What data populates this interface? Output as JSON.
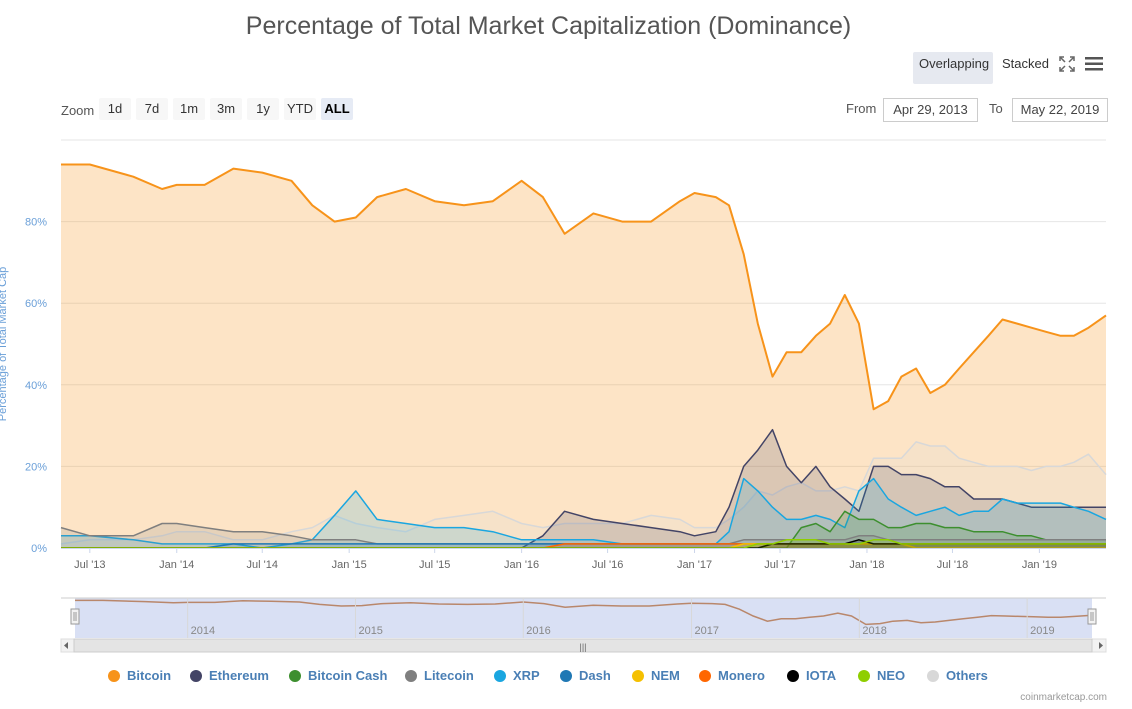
{
  "title": "Percentage of Total Market Capitalization (Dominance)",
  "toolbar": {
    "overlapping": "Overlapping",
    "stacked": "Stacked"
  },
  "zoom": {
    "label": "Zoom",
    "buttons": [
      "1d",
      "7d",
      "1m",
      "3m",
      "1y",
      "YTD",
      "ALL"
    ],
    "selected": "ALL"
  },
  "range": {
    "from_label": "From",
    "from": "Apr 29, 2013",
    "to_label": "To",
    "to": "May 22, 2019"
  },
  "credit": "coinmarketcap.com",
  "navigator": {
    "labels": [
      "2014",
      "2015",
      "2016",
      "2017",
      "2018",
      "2019"
    ],
    "scrollbar_grip": "|||"
  },
  "colors": {
    "Bitcoin": "#f7931a",
    "Ethereum": "#434466",
    "Bitcoin Cash": "#3d8f2f",
    "Litecoin": "#7f7f7f",
    "XRP": "#1aa6e0",
    "Dash": "#1f78b4",
    "NEM": "#f5c000",
    "Monero": "#ff6600",
    "IOTA": "#000000",
    "NEO": "#8fce00",
    "Others": "#d8d8d8"
  },
  "chart_data": {
    "type": "area",
    "title": "Percentage of Total Market Capitalization (Dominance)",
    "ylabel": "Percentage of Total Market Cap",
    "ylim": [
      0,
      100
    ],
    "yticks": [
      "0%",
      "20%",
      "40%",
      "60%",
      "80%"
    ],
    "xticks": [
      "Jul '13",
      "Jan '14",
      "Jul '14",
      "Jan '15",
      "Jul '15",
      "Jan '16",
      "Jul '16",
      "Jan '17",
      "Jul '17",
      "Jan '18",
      "Jul '18",
      "Jan '19"
    ],
    "x": [
      "2013-05-01",
      "2013-07-01",
      "2013-10-01",
      "2013-12-01",
      "2014-01-01",
      "2014-03-01",
      "2014-05-01",
      "2014-07-01",
      "2014-09-01",
      "2014-10-15",
      "2014-12-01",
      "2015-01-15",
      "2015-03-01",
      "2015-05-01",
      "2015-07-01",
      "2015-09-01",
      "2015-11-01",
      "2016-01-01",
      "2016-02-15",
      "2016-04-01",
      "2016-06-01",
      "2016-08-01",
      "2016-10-01",
      "2016-12-01",
      "2017-01-01",
      "2017-02-15",
      "2017-03-15",
      "2017-04-15",
      "2017-05-15",
      "2017-06-15",
      "2017-07-15",
      "2017-08-15",
      "2017-09-15",
      "2017-10-15",
      "2017-11-15",
      "2017-12-15",
      "2018-01-15",
      "2018-02-15",
      "2018-03-15",
      "2018-04-15",
      "2018-05-15",
      "2018-06-15",
      "2018-07-15",
      "2018-08-15",
      "2018-09-15",
      "2018-10-15",
      "2018-11-15",
      "2018-12-15",
      "2019-01-15",
      "2019-02-15",
      "2019-03-15",
      "2019-04-15",
      "2019-05-22"
    ],
    "series": [
      {
        "name": "Bitcoin",
        "values": [
          94,
          94,
          91,
          88,
          89,
          89,
          93,
          92,
          90,
          84,
          80,
          81,
          86,
          88,
          85,
          84,
          85,
          90,
          86,
          77,
          82,
          80,
          80,
          85,
          87,
          86,
          84,
          72,
          55,
          42,
          48,
          48,
          52,
          55,
          62,
          55,
          34,
          36,
          42,
          44,
          38,
          40,
          44,
          48,
          52,
          56,
          55,
          54,
          53,
          52,
          52,
          54,
          57
        ]
      },
      {
        "name": "Ethereum",
        "values": [
          0,
          0,
          0,
          0,
          0,
          0,
          0,
          0,
          0,
          0,
          0,
          0,
          0,
          0,
          0,
          0,
          0,
          0,
          3,
          9,
          7,
          6,
          5,
          4,
          3,
          4,
          10,
          20,
          24,
          29,
          20,
          16,
          20,
          15,
          12,
          9,
          20,
          20,
          18,
          18,
          17,
          15,
          15,
          12,
          12,
          12,
          11,
          10,
          10,
          10,
          10,
          10,
          10
        ]
      },
      {
        "name": "Bitcoin Cash",
        "values": [
          0,
          0,
          0,
          0,
          0,
          0,
          0,
          0,
          0,
          0,
          0,
          0,
          0,
          0,
          0,
          0,
          0,
          0,
          0,
          0,
          0,
          0,
          0,
          0,
          0,
          0,
          0,
          0,
          0,
          0,
          0,
          5,
          6,
          4,
          9,
          7,
          7,
          5,
          5,
          6,
          6,
          5,
          5,
          4,
          4,
          4,
          3,
          3,
          2,
          2,
          2,
          2,
          2
        ]
      },
      {
        "name": "Litecoin",
        "values": [
          5,
          3,
          3,
          6,
          6,
          5,
          4,
          4,
          3,
          2,
          2,
          2,
          1,
          1,
          1,
          1,
          1,
          1,
          1,
          1,
          1,
          1,
          1,
          1,
          1,
          1,
          1,
          2,
          2,
          2,
          2,
          2,
          2,
          2,
          2,
          3,
          3,
          2,
          2,
          2,
          2,
          2,
          2,
          2,
          2,
          2,
          2,
          2,
          2,
          2,
          2,
          2,
          2
        ]
      },
      {
        "name": "XRP",
        "values": [
          3,
          3,
          2,
          1,
          1,
          1,
          1,
          0,
          1,
          2,
          8,
          14,
          7,
          6,
          5,
          5,
          4,
          2,
          2,
          2,
          2,
          1,
          1,
          1,
          1,
          1,
          4,
          17,
          14,
          10,
          7,
          7,
          8,
          7,
          5,
          14,
          17,
          12,
          10,
          8,
          9,
          10,
          8,
          9,
          9,
          12,
          11,
          11,
          11,
          11,
          10,
          9,
          7
        ]
      },
      {
        "name": "Dash",
        "values": [
          0,
          0,
          0,
          0,
          0,
          0,
          1,
          1,
          1,
          1,
          1,
          1,
          1,
          1,
          1,
          1,
          1,
          1,
          1,
          1,
          1,
          1,
          1,
          1,
          1,
          1,
          1,
          1,
          1,
          1,
          1,
          1,
          1,
          1,
          1,
          1,
          1,
          1,
          1,
          1,
          1,
          1,
          1,
          1,
          1,
          1,
          1,
          1,
          1,
          1,
          1,
          1,
          1
        ]
      },
      {
        "name": "NEM",
        "values": [
          0,
          0,
          0,
          0,
          0,
          0,
          0,
          0,
          0,
          0,
          0,
          0,
          0,
          0,
          0,
          0,
          0,
          0,
          0,
          0,
          0,
          0,
          0,
          0,
          0,
          0,
          0,
          1,
          1,
          1,
          1,
          1,
          1,
          1,
          1,
          1,
          1,
          1,
          1,
          0,
          0,
          0,
          0,
          0,
          0,
          0,
          0,
          0,
          0,
          0,
          0,
          0,
          0
        ]
      },
      {
        "name": "Monero",
        "values": [
          0,
          0,
          0,
          0,
          0,
          0,
          0,
          0,
          0,
          0,
          0,
          0,
          0,
          0,
          0,
          0,
          0,
          0,
          0,
          1,
          1,
          1,
          1,
          1,
          1,
          1,
          1,
          1,
          1,
          1,
          1,
          1,
          1,
          1,
          1,
          1,
          1,
          1,
          1,
          1,
          1,
          1,
          1,
          1,
          1,
          1,
          1,
          1,
          1,
          1,
          1,
          1,
          1
        ]
      },
      {
        "name": "IOTA",
        "values": [
          0,
          0,
          0,
          0,
          0,
          0,
          0,
          0,
          0,
          0,
          0,
          0,
          0,
          0,
          0,
          0,
          0,
          0,
          0,
          0,
          0,
          0,
          0,
          0,
          0,
          0,
          0,
          0,
          0,
          1,
          1,
          1,
          1,
          1,
          1,
          2,
          1,
          1,
          1,
          1,
          1,
          1,
          1,
          1,
          1,
          1,
          1,
          1,
          1,
          1,
          1,
          1,
          1
        ]
      },
      {
        "name": "NEO",
        "values": [
          0,
          0,
          0,
          0,
          0,
          0,
          0,
          0,
          0,
          0,
          0,
          0,
          0,
          0,
          0,
          0,
          0,
          0,
          0,
          0,
          0,
          0,
          0,
          0,
          0,
          0,
          0,
          0,
          1,
          1,
          2,
          2,
          2,
          1,
          1,
          1,
          2,
          2,
          1,
          1,
          1,
          1,
          1,
          1,
          1,
          1,
          1,
          1,
          1,
          1,
          1,
          1,
          1
        ]
      },
      {
        "name": "Others",
        "values": [
          1,
          2,
          2,
          3,
          4,
          4,
          2,
          2,
          4,
          5,
          8,
          6,
          5,
          4,
          7,
          8,
          9,
          6,
          5,
          6,
          6,
          6,
          8,
          7,
          5,
          5,
          7,
          10,
          14,
          13,
          15,
          16,
          14,
          14,
          15,
          14,
          22,
          22,
          22,
          26,
          25,
          25,
          22,
          21,
          20,
          20,
          20,
          19,
          20,
          20,
          21,
          23,
          18
        ]
      }
    ],
    "legend_placement": "bottom",
    "grid": true
  }
}
